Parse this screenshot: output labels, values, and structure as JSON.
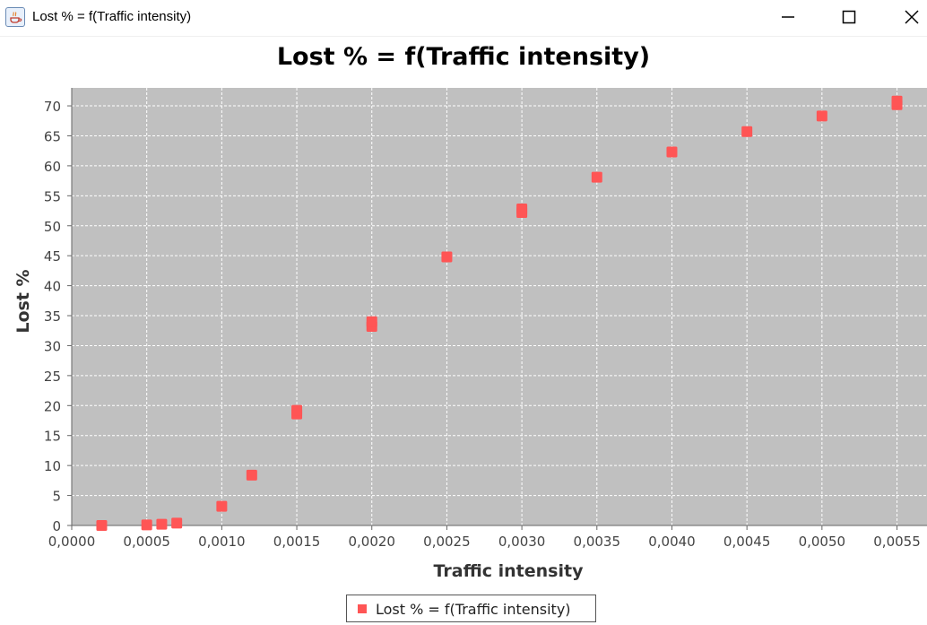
{
  "window": {
    "title": "Lost % = f(Traffic intensity)",
    "icon": "java-cup-icon",
    "controls": [
      "minimize-icon",
      "maximize-icon",
      "close-icon"
    ]
  },
  "colors": {
    "plot_background": "#c0c0c0",
    "gridline": "#ffffff",
    "series": "#ff5555",
    "axis_text": "#444444"
  },
  "chart_data": {
    "type": "scatter",
    "title": "Lost % = f(Traffic intensity)",
    "xlabel": "Traffic intensity",
    "ylabel": "Lost %",
    "xlim": [
      0,
      0.0057
    ],
    "ylim": [
      0,
      73
    ],
    "grid": true,
    "legend_position": "bottom",
    "x_ticks": [
      "0,0000",
      "0,0005",
      "0,0010",
      "0,0015",
      "0,0020",
      "0,0025",
      "0,0030",
      "0,0035",
      "0,0040",
      "0,0045",
      "0,0050",
      "0,0055"
    ],
    "x_tick_values": [
      0,
      0.0005,
      0.001,
      0.0015,
      0.002,
      0.0025,
      0.003,
      0.0035,
      0.004,
      0.0045,
      0.005,
      0.0055
    ],
    "y_ticks": [
      "0",
      "5",
      "10",
      "15",
      "20",
      "25",
      "30",
      "35",
      "40",
      "45",
      "50",
      "55",
      "60",
      "65",
      "70"
    ],
    "y_tick_values": [
      0,
      5,
      10,
      15,
      20,
      25,
      30,
      35,
      40,
      45,
      50,
      55,
      60,
      65,
      70
    ],
    "series": [
      {
        "name": "Lost % = f(Traffic intensity)",
        "color": "#ff5555",
        "points": [
          {
            "x": 0.0002,
            "y": 0.0
          },
          {
            "x": 0.0005,
            "y": 0.1
          },
          {
            "x": 0.0006,
            "y": 0.2
          },
          {
            "x": 0.0007,
            "y": 0.4
          },
          {
            "x": 0.001,
            "y": 3.2
          },
          {
            "x": 0.0012,
            "y": 8.4
          },
          {
            "x": 0.0015,
            "y": 18.6
          },
          {
            "x": 0.0015,
            "y": 19.2
          },
          {
            "x": 0.002,
            "y": 33.2
          },
          {
            "x": 0.002,
            "y": 34.0
          },
          {
            "x": 0.0025,
            "y": 44.8
          },
          {
            "x": 0.003,
            "y": 52.2
          },
          {
            "x": 0.003,
            "y": 52.8
          },
          {
            "x": 0.0035,
            "y": 58.1
          },
          {
            "x": 0.004,
            "y": 62.3
          },
          {
            "x": 0.0045,
            "y": 65.7
          },
          {
            "x": 0.005,
            "y": 68.3
          },
          {
            "x": 0.0055,
            "y": 70.2
          },
          {
            "x": 0.0055,
            "y": 70.8
          }
        ]
      }
    ]
  }
}
